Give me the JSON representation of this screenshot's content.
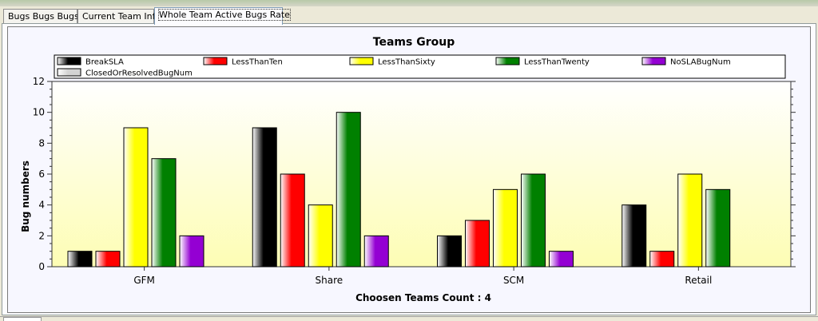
{
  "tabs": [
    {
      "label": "Bugs Bugs Bugs",
      "active": false
    },
    {
      "label": "Current Team Info",
      "active": false
    },
    {
      "label": "Whole Team Active Bugs Rate",
      "active": true
    }
  ],
  "colors": {
    "BreakSLA": "#000000",
    "LessThanTen": "#ff0000",
    "LessThanSixty": "#ffff00",
    "LessThanTwenty": "#008000",
    "NoSLABugNum": "#9400d3",
    "ClosedOrResolvedBugNum": "#d3d3d3"
  },
  "chart_data": {
    "type": "bar",
    "title": "Teams Group",
    "xlabel": "Choosen Teams Count : 4",
    "ylabel": "Bug numbers",
    "ylim": [
      0,
      12
    ],
    "yticks": [
      0,
      2,
      4,
      6,
      8,
      10,
      12
    ],
    "grid": false,
    "legend_position": "top",
    "categories": [
      "GFM",
      "Share",
      "SCM",
      "Retail"
    ],
    "series": [
      {
        "name": "BreakSLA",
        "values": [
          1,
          9,
          2,
          4
        ]
      },
      {
        "name": "LessThanTen",
        "values": [
          1,
          6,
          3,
          1
        ]
      },
      {
        "name": "LessThanSixty",
        "values": [
          9,
          4,
          5,
          6
        ]
      },
      {
        "name": "LessThanTwenty",
        "values": [
          7,
          10,
          6,
          5
        ]
      },
      {
        "name": "NoSLABugNum",
        "values": [
          2,
          2,
          1,
          0
        ]
      },
      {
        "name": "ClosedOrResolvedBugNum",
        "values": [
          0,
          0,
          0,
          0
        ]
      }
    ]
  }
}
